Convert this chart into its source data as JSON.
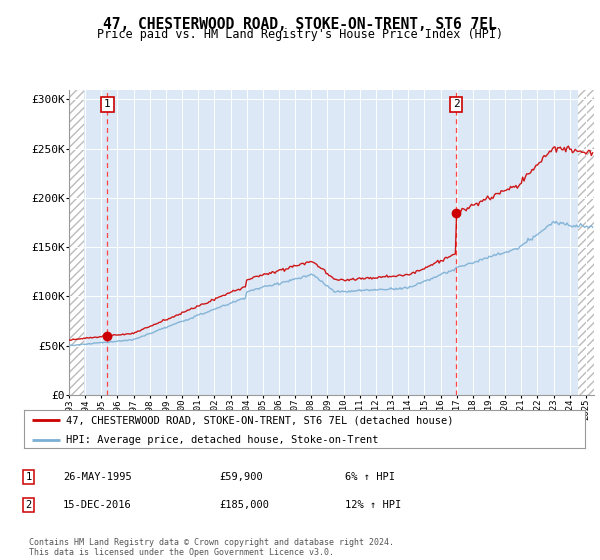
{
  "title": "47, CHESTERWOOD ROAD, STOKE-ON-TRENT, ST6 7EL",
  "subtitle": "Price paid vs. HM Land Registry's House Price Index (HPI)",
  "legend_line1": "47, CHESTERWOOD ROAD, STOKE-ON-TRENT, ST6 7EL (detached house)",
  "legend_line2": "HPI: Average price, detached house, Stoke-on-Trent",
  "annotation1_label": "1",
  "annotation1_date": "26-MAY-1995",
  "annotation1_price": "£59,900",
  "annotation1_hpi": "6% ↑ HPI",
  "annotation2_label": "2",
  "annotation2_date": "15-DEC-2016",
  "annotation2_price": "£185,000",
  "annotation2_hpi": "12% ↑ HPI",
  "sale1_year": 1995.38,
  "sale1_price": 59900,
  "sale2_year": 2016.96,
  "sale2_price": 185000,
  "ylim": [
    0,
    310000
  ],
  "yticks": [
    0,
    50000,
    100000,
    150000,
    200000,
    250000,
    300000
  ],
  "ytick_labels": [
    "£0",
    "£50K",
    "£100K",
    "£150K",
    "£200K",
    "£250K",
    "£300K"
  ],
  "footer": "Contains HM Land Registry data © Crown copyright and database right 2024.\nThis data is licensed under the Open Government Licence v3.0.",
  "bg_color": "#dce8f5",
  "grid_color": "#ffffff",
  "sale_color": "#cc0000",
  "hpi_color": "#7bafd4",
  "hatch_color": "#bbbbbb",
  "xmin": 1993,
  "xmax": 2025.5
}
